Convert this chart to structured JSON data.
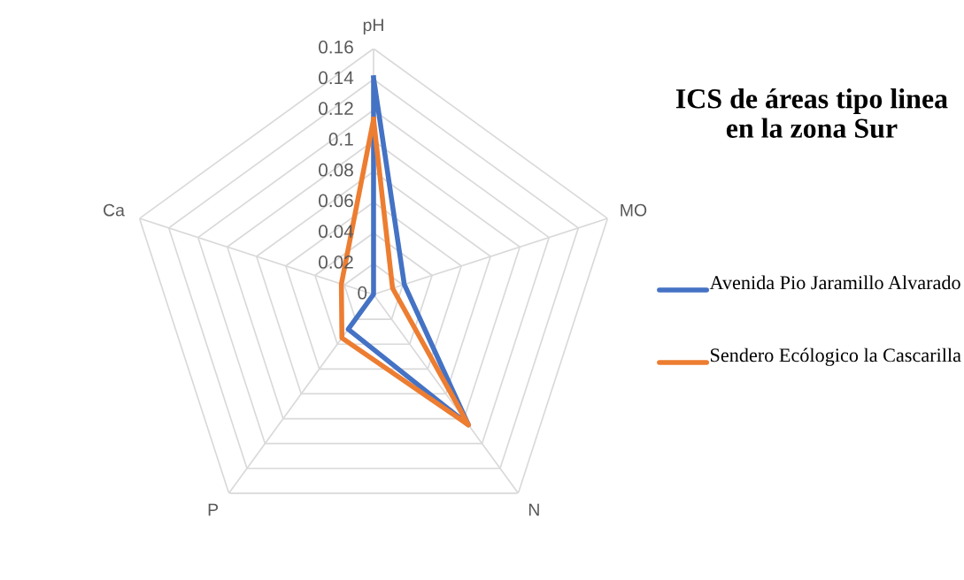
{
  "chart_data": {
    "type": "radar",
    "title": "ICS de áreas tipo linea en la zona Sur",
    "categories": [
      "pH",
      "MO",
      "N",
      "P",
      "Ca"
    ],
    "series": [
      {
        "name": "Avenida Pio Jaramillo Alvarado",
        "color": "#4472c4",
        "values": [
          0.141,
          0.021,
          0.105,
          0.028,
          0.0
        ]
      },
      {
        "name": "Sendero Ecólogico la Cascarilla",
        "color": "#ed7d31",
        "values": [
          0.114,
          0.013,
          0.105,
          0.035,
          0.022
        ]
      }
    ],
    "ylim": [
      0,
      0.16
    ],
    "yticks": [
      0,
      0.02,
      0.04,
      0.06,
      0.08,
      0.1,
      0.12,
      0.14,
      0.16
    ],
    "grid": true,
    "legend": "right",
    "marker": "none",
    "line_style": "solid"
  }
}
